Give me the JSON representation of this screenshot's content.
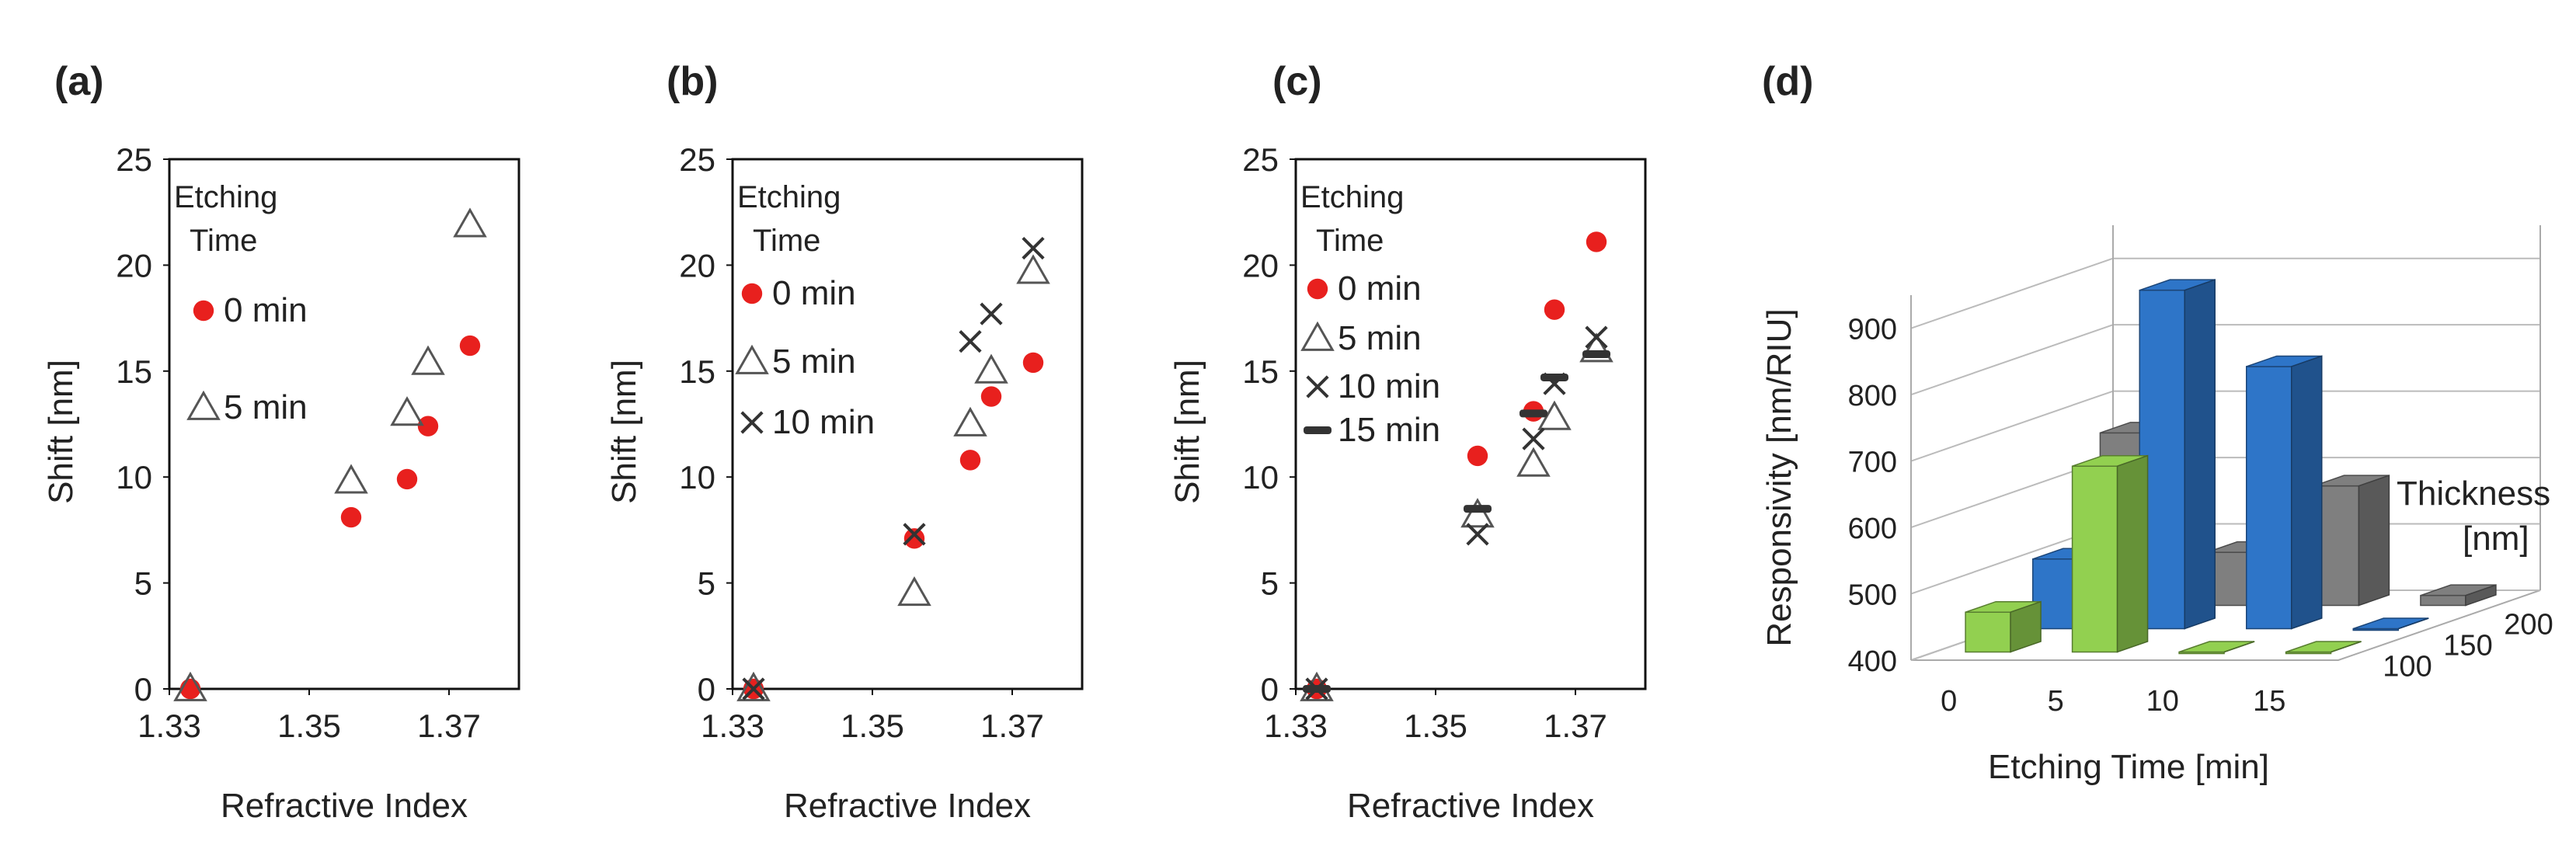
{
  "chart_data": [
    {
      "panel_label": "(a)",
      "type": "scatter",
      "xlabel": "Refractive Index",
      "ylabel": "Shift [nm]",
      "xlim": [
        1.33,
        1.38
      ],
      "ylim": [
        0,
        25
      ],
      "xticks": [
        "1.33",
        "1.35",
        "1.37"
      ],
      "xtick_values": [
        1.33,
        1.35,
        1.37
      ],
      "yticks": [
        "0",
        "5",
        "10",
        "15",
        "20",
        "25"
      ],
      "ytick_values": [
        0,
        5,
        10,
        15,
        20,
        25
      ],
      "legend_title": [
        "Etching",
        "Time"
      ],
      "series": [
        {
          "name": "0 min",
          "marker": "dot",
          "color": "#e8201e",
          "x": [
            1.333,
            1.356,
            1.364,
            1.367,
            1.373
          ],
          "y": [
            0,
            8.1,
            9.9,
            12.4,
            16.2
          ]
        },
        {
          "name": "5 min",
          "marker": "triangle",
          "color": "#555555",
          "x": [
            1.333,
            1.356,
            1.364,
            1.367,
            1.373
          ],
          "y": [
            0,
            9.8,
            13.0,
            15.4,
            21.9
          ]
        }
      ]
    },
    {
      "panel_label": "(b)",
      "type": "scatter",
      "xlabel": "Refractive Index",
      "ylabel": "Shift [nm]",
      "xlim": [
        1.33,
        1.38
      ],
      "ylim": [
        0,
        25
      ],
      "xticks": [
        "1.33",
        "1.35",
        "1.37"
      ],
      "xtick_values": [
        1.33,
        1.35,
        1.37
      ],
      "yticks": [
        "0",
        "5",
        "10",
        "15",
        "20",
        "25"
      ],
      "ytick_values": [
        0,
        5,
        10,
        15,
        20,
        25
      ],
      "legend_title": [
        "Etching",
        "Time"
      ],
      "series": [
        {
          "name": "0 min",
          "marker": "dot",
          "color": "#e8201e",
          "x": [
            1.333,
            1.356,
            1.364,
            1.367,
            1.373
          ],
          "y": [
            0,
            7.1,
            10.8,
            13.8,
            15.4
          ]
        },
        {
          "name": "5 min",
          "marker": "triangle",
          "color": "#555555",
          "x": [
            1.333,
            1.356,
            1.364,
            1.367,
            1.373
          ],
          "y": [
            0,
            4.5,
            12.5,
            15.0,
            19.7
          ]
        },
        {
          "name": "10 min",
          "marker": "cross",
          "color": "#333333",
          "x": [
            1.333,
            1.356,
            1.364,
            1.367,
            1.373
          ],
          "y": [
            0,
            7.3,
            16.4,
            17.7,
            20.8
          ]
        }
      ]
    },
    {
      "panel_label": "(c)",
      "type": "scatter",
      "xlabel": "Refractive Index",
      "ylabel": "Shift [nm]",
      "xlim": [
        1.33,
        1.38
      ],
      "ylim": [
        0,
        25
      ],
      "xticks": [
        "1.33",
        "1.35",
        "1.37"
      ],
      "xtick_values": [
        1.33,
        1.35,
        1.37
      ],
      "yticks": [
        "0",
        "5",
        "10",
        "15",
        "20",
        "25"
      ],
      "ytick_values": [
        0,
        5,
        10,
        15,
        20,
        25
      ],
      "legend_title": [
        "Etching",
        "Time"
      ],
      "series": [
        {
          "name": "0 min",
          "marker": "dot",
          "color": "#e8201e",
          "x": [
            1.333,
            1.356,
            1.364,
            1.367,
            1.373
          ],
          "y": [
            0,
            11.0,
            13.1,
            17.9,
            21.1
          ]
        },
        {
          "name": "5 min",
          "marker": "triangle",
          "color": "#555555",
          "x": [
            1.333,
            1.356,
            1.364,
            1.367,
            1.373
          ],
          "y": [
            0,
            8.2,
            10.6,
            12.8,
            16.0
          ]
        },
        {
          "name": "10 min",
          "marker": "cross",
          "color": "#333333",
          "x": [
            1.333,
            1.356,
            1.364,
            1.367,
            1.373
          ],
          "y": [
            0,
            7.3,
            11.8,
            14.4,
            16.6
          ]
        },
        {
          "name": "15 min",
          "marker": "dash",
          "color": "#333333",
          "x": [
            1.333,
            1.356,
            1.364,
            1.367,
            1.373
          ],
          "y": [
            0,
            8.5,
            13.0,
            14.7,
            15.8
          ]
        }
      ]
    },
    {
      "panel_label": "(d)",
      "type": "bar",
      "style": "3d-grouped",
      "xlabel": "Etching Time [min]",
      "ylabel": "Responsivity [nm/RIU]",
      "depth_label": [
        "Thickness",
        "[nm]"
      ],
      "categories": [
        "0",
        "5",
        "10",
        "15"
      ],
      "depth_categories": [
        "100",
        "150",
        "200"
      ],
      "ylim": [
        400,
        950
      ],
      "yticks": [
        "400",
        "500",
        "600",
        "700",
        "800",
        "900"
      ],
      "ytick_values": [
        400,
        500,
        600,
        700,
        800,
        900
      ],
      "series": [
        {
          "name": "100",
          "color": "#92d050",
          "values": [
            460,
            680,
            400,
            400
          ]
        },
        {
          "name": "150",
          "color": "#2e75c8",
          "values": [
            505,
            910,
            795,
            400
          ]
        },
        {
          "name": "200",
          "color": "#7f7f7f",
          "values": [
            660,
            480,
            580,
            415
          ]
        }
      ]
    }
  ]
}
